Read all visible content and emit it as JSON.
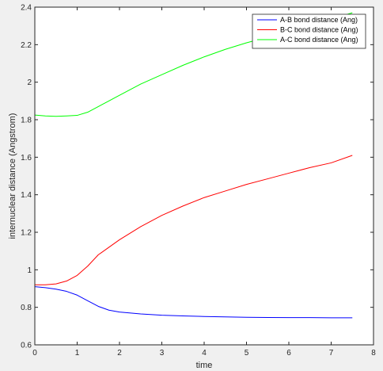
{
  "chart_data": {
    "type": "line",
    "title": "",
    "xlabel": "time",
    "ylabel": "internuclear distance (Angstrom)",
    "xlim": [
      0,
      8
    ],
    "ylim": [
      0.6,
      2.4
    ],
    "xticks": [
      0,
      1,
      2,
      3,
      4,
      5,
      6,
      7,
      8
    ],
    "yticks": [
      0.6,
      0.8,
      1.0,
      1.2,
      1.4,
      1.6,
      1.8,
      2.0,
      2.2,
      2.4
    ],
    "ytick_labels": [
      "0.6",
      "0.8",
      "1",
      "1.2",
      "1.4",
      "1.6",
      "1.8",
      "2",
      "2.2",
      "2.4"
    ],
    "grid": false,
    "legend_position": "top-right",
    "series": [
      {
        "name": "A-B bond distance (Ang)",
        "color": "#0000ff",
        "points": [
          [
            0,
            0.91
          ],
          [
            0.25,
            0.905
          ],
          [
            0.5,
            0.897
          ],
          [
            0.75,
            0.885
          ],
          [
            1.0,
            0.865
          ],
          [
            1.25,
            0.835
          ],
          [
            1.5,
            0.805
          ],
          [
            1.75,
            0.785
          ],
          [
            2.0,
            0.775
          ],
          [
            2.5,
            0.765
          ],
          [
            3.0,
            0.758
          ],
          [
            3.5,
            0.754
          ],
          [
            4.0,
            0.751
          ],
          [
            4.5,
            0.749
          ],
          [
            5.0,
            0.747
          ],
          [
            5.5,
            0.746
          ],
          [
            6.0,
            0.745
          ],
          [
            6.5,
            0.745
          ],
          [
            7.0,
            0.744
          ],
          [
            7.5,
            0.744
          ]
        ]
      },
      {
        "name": "B-C bond distance (Ang)",
        "color": "#ff0000",
        "points": [
          [
            0,
            0.92
          ],
          [
            0.25,
            0.92
          ],
          [
            0.5,
            0.925
          ],
          [
            0.75,
            0.94
          ],
          [
            1.0,
            0.97
          ],
          [
            1.25,
            1.02
          ],
          [
            1.5,
            1.08
          ],
          [
            1.75,
            1.12
          ],
          [
            2.0,
            1.16
          ],
          [
            2.5,
            1.23
          ],
          [
            3.0,
            1.29
          ],
          [
            3.5,
            1.34
          ],
          [
            4.0,
            1.385
          ],
          [
            4.5,
            1.42
          ],
          [
            5.0,
            1.455
          ],
          [
            5.5,
            1.485
          ],
          [
            6.0,
            1.515
          ],
          [
            6.5,
            1.545
          ],
          [
            7.0,
            1.57
          ],
          [
            7.5,
            1.61
          ]
        ]
      },
      {
        "name": "A-C bond distance (Ang)",
        "color": "#00ff00",
        "points": [
          [
            0,
            1.825
          ],
          [
            0.25,
            1.82
          ],
          [
            0.5,
            1.818
          ],
          [
            0.75,
            1.82
          ],
          [
            1.0,
            1.823
          ],
          [
            1.25,
            1.84
          ],
          [
            1.5,
            1.87
          ],
          [
            2.0,
            1.93
          ],
          [
            2.5,
            1.99
          ],
          [
            3.0,
            2.04
          ],
          [
            3.5,
            2.09
          ],
          [
            4.0,
            2.135
          ],
          [
            4.5,
            2.175
          ],
          [
            5.0,
            2.21
          ],
          [
            5.5,
            2.24
          ],
          [
            6.0,
            2.275
          ],
          [
            6.5,
            2.305
          ],
          [
            7.0,
            2.335
          ],
          [
            7.5,
            2.37
          ]
        ]
      }
    ]
  }
}
